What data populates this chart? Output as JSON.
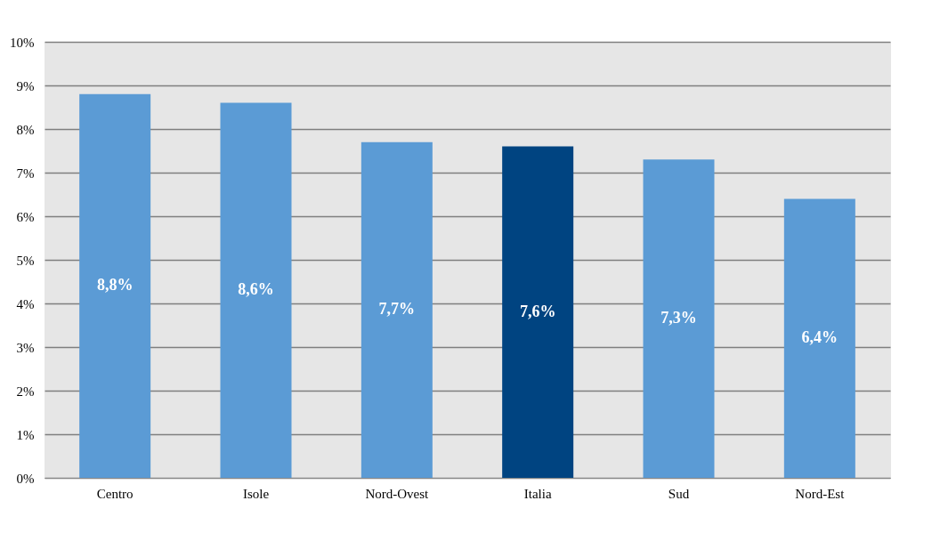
{
  "chart_data": {
    "type": "bar",
    "categories": [
      "Centro",
      "Isole",
      "Nord-Ovest",
      "Italia",
      "Sud",
      "Nord-Est"
    ],
    "values": [
      8.8,
      8.6,
      7.7,
      7.6,
      7.3,
      6.4
    ],
    "colors": [
      "#5b9bd5",
      "#5b9bd5",
      "#5b9bd5",
      "#004481",
      "#5b9bd5",
      "#5b9bd5"
    ],
    "value_labels": [
      "8,8%",
      "8,6%",
      "7,7%",
      "7,6%",
      "7,3%",
      "6,4%"
    ],
    "ylim": [
      0,
      10
    ],
    "yticks": [
      {
        "value": 0,
        "label": "0%"
      },
      {
        "value": 1,
        "label": "1%"
      },
      {
        "value": 2,
        "label": "2%"
      },
      {
        "value": 3,
        "label": "3%"
      },
      {
        "value": 4,
        "label": "4%"
      },
      {
        "value": 5,
        "label": "5%"
      },
      {
        "value": 6,
        "label": "6%"
      },
      {
        "value": 7,
        "label": "7%"
      },
      {
        "value": 8,
        "label": "8%"
      },
      {
        "value": 9,
        "label": "9%"
      },
      {
        "value": 10,
        "label": "10%"
      }
    ],
    "grid": "y"
  }
}
